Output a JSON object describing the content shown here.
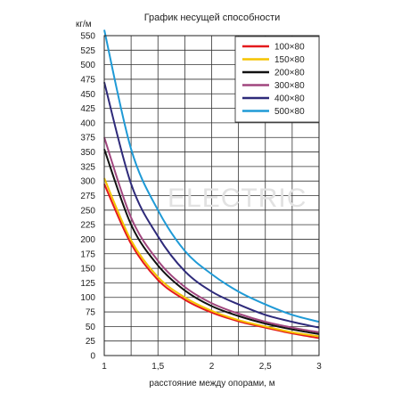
{
  "chart_data": {
    "type": "line",
    "title": "График несущей способности",
    "ylabel": "кг/м",
    "xlabel": "расстояние между опорами, м",
    "xlim": [
      1,
      3
    ],
    "ylim": [
      0,
      550
    ],
    "x_ticks": [
      "1",
      "1,5",
      "2",
      "2,5",
      "3"
    ],
    "x_tick_values": [
      1,
      1.5,
      2,
      2.5,
      3
    ],
    "y_ticks": [
      0,
      25,
      50,
      75,
      100,
      125,
      150,
      175,
      200,
      225,
      250,
      275,
      300,
      325,
      350,
      375,
      400,
      425,
      450,
      475,
      500,
      525,
      550
    ],
    "grid": true,
    "legend_position": "top-right",
    "x": [
      1,
      1.25,
      1.5,
      1.75,
      2,
      2.25,
      2.5,
      2.75,
      3
    ],
    "series": [
      {
        "name": "100×80",
        "color": "#e41a1c",
        "values": [
          295,
          192,
          130,
          96,
          74,
          59,
          48,
          38,
          30
        ]
      },
      {
        "name": "150×80",
        "color": "#f5c400",
        "values": [
          305,
          198,
          135,
          100,
          77,
          61,
          50,
          40,
          33
        ]
      },
      {
        "name": "200×80",
        "color": "#111111",
        "values": [
          355,
          225,
          155,
          112,
          85,
          68,
          55,
          45,
          37
        ]
      },
      {
        "name": "300×80",
        "color": "#a0467e",
        "values": [
          375,
          237,
          163,
          118,
          90,
          72,
          58,
          48,
          40
        ]
      },
      {
        "name": "400×80",
        "color": "#2e2a7a",
        "values": [
          470,
          295,
          205,
          145,
          110,
          88,
          70,
          58,
          48
        ]
      },
      {
        "name": "500×80",
        "color": "#1f9ad6",
        "values": [
          560,
          355,
          250,
          180,
          140,
          110,
          88,
          70,
          58
        ]
      }
    ],
    "watermark": "ELECTRIC"
  }
}
